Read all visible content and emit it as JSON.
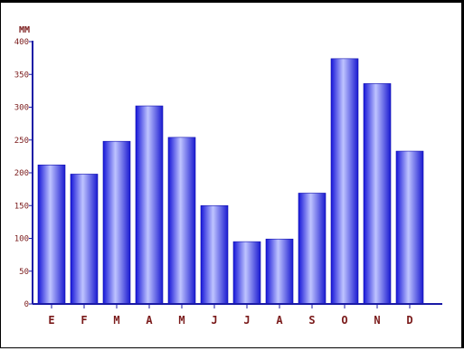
{
  "chart_data": {
    "type": "bar",
    "categories": [
      "E",
      "F",
      "M",
      "A",
      "M",
      "J",
      "J",
      "A",
      "S",
      "O",
      "N",
      "D"
    ],
    "values": [
      212,
      198,
      248,
      302,
      254,
      150,
      95,
      99,
      169,
      374,
      336,
      233
    ],
    "ylabel": "MM",
    "ylim": [
      0,
      400
    ],
    "yticks": [
      0,
      50,
      100,
      150,
      200,
      250,
      300,
      350,
      400
    ],
    "grid": false,
    "colors": {
      "bar": "#2a2ae6",
      "bar_highlight": "#c8ccff",
      "axis": "#1a1aa6",
      "text": "#7a1a1a"
    }
  }
}
